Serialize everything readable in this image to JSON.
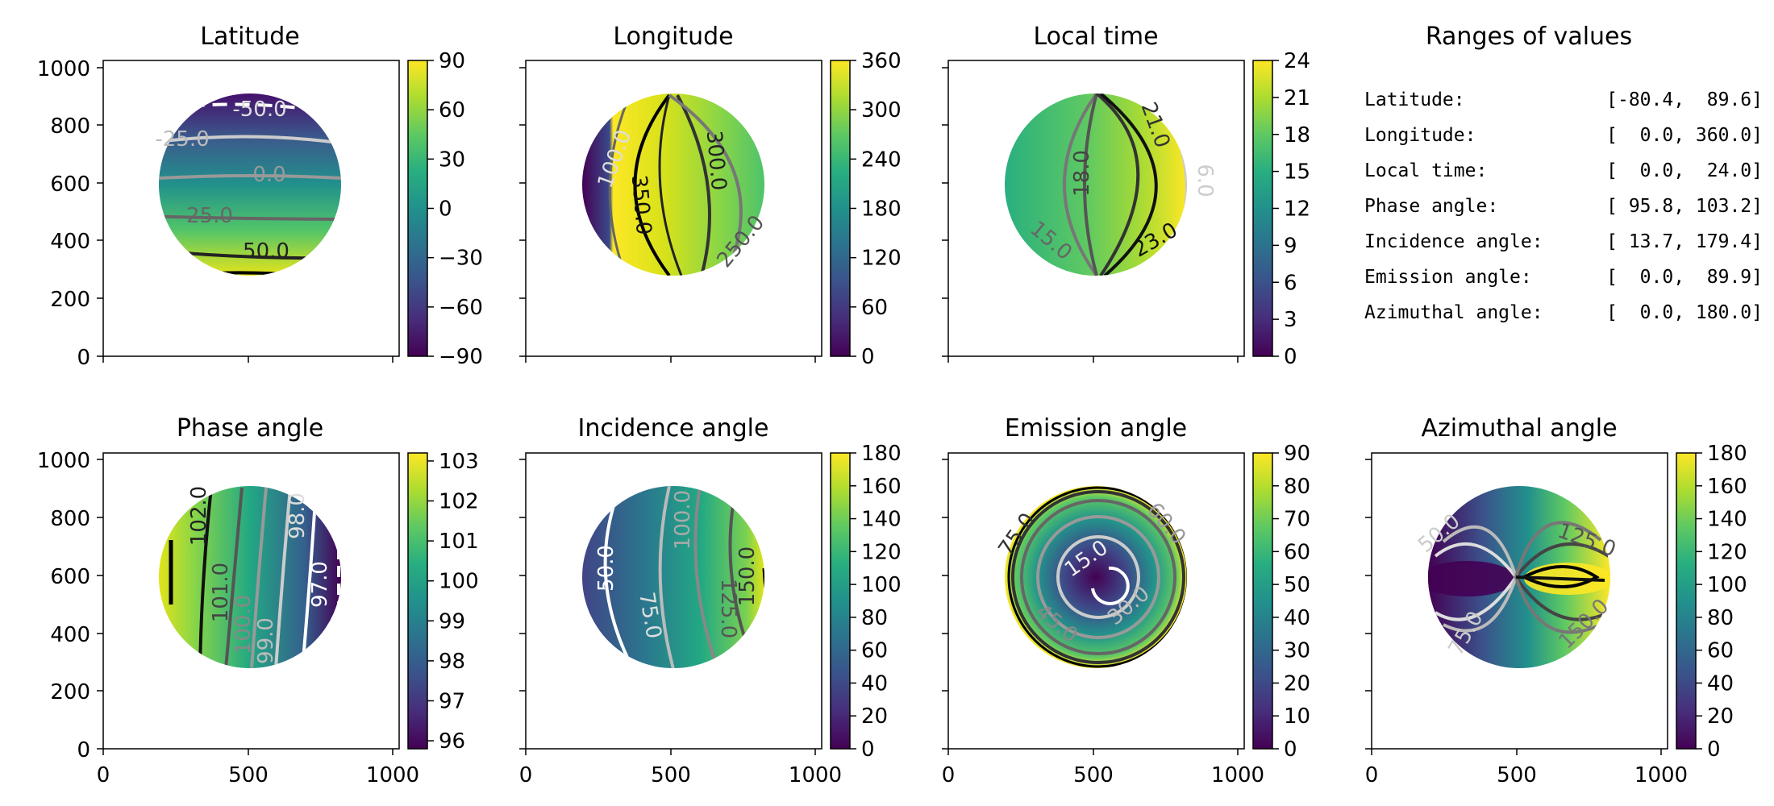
{
  "panels": [
    {
      "title": "Latitude",
      "cbar_ticks": [
        "90",
        "60",
        "30",
        "0",
        "−30",
        "−60",
        "−90"
      ],
      "cbar_range": [
        -90,
        90
      ],
      "contour_labels": [
        "-50.0",
        "-25.0",
        "0.0",
        "25.0",
        "50.0"
      ]
    },
    {
      "title": "Longitude",
      "cbar_ticks": [
        "360",
        "300",
        "240",
        "180",
        "120",
        "60",
        "0"
      ],
      "cbar_range": [
        0,
        360
      ],
      "contour_labels": [
        "100.0",
        "300.0",
        "350.0",
        "250.0"
      ]
    },
    {
      "title": "Local time",
      "cbar_ticks": [
        "24",
        "21",
        "18",
        "15",
        "12",
        "9",
        "6",
        "3",
        "0"
      ],
      "cbar_range": [
        0,
        24
      ],
      "contour_labels": [
        "21.0",
        "18.0",
        "15.0",
        "23.0",
        "6.0"
      ]
    },
    {
      "title": "Phase angle",
      "cbar_ticks": [
        "103",
        "102",
        "101",
        "100",
        "99",
        "98",
        "97",
        "96"
      ],
      "cbar_range": [
        95.8,
        103.2
      ],
      "contour_labels": [
        "102.0",
        "98.0",
        "101.0",
        "97.0",
        "100.0",
        "99.0"
      ]
    },
    {
      "title": "Incidence angle",
      "cbar_ticks": [
        "180",
        "160",
        "140",
        "120",
        "100",
        "80",
        "60",
        "40",
        "20",
        "0"
      ],
      "cbar_range": [
        0,
        180
      ],
      "contour_labels": [
        "100.0",
        "50.0",
        "150.0",
        "125.0",
        "75.0"
      ]
    },
    {
      "title": "Emission angle",
      "cbar_ticks": [
        "90",
        "80",
        "70",
        "60",
        "50",
        "40",
        "30",
        "20",
        "10",
        "0"
      ],
      "cbar_range": [
        0,
        90
      ],
      "contour_labels": [
        "75.0",
        "60.0",
        "15.0",
        "30.0",
        "45.0"
      ]
    },
    {
      "title": "Azimuthal angle",
      "cbar_ticks": [
        "180",
        "160",
        "140",
        "120",
        "100",
        "80",
        "60",
        "40",
        "20",
        "0"
      ],
      "cbar_range": [
        0,
        180
      ],
      "contour_labels": [
        "50.0",
        "125.0",
        "75.0",
        "150.0"
      ]
    }
  ],
  "axes": {
    "y_ticks": [
      "1000",
      "800",
      "600",
      "400",
      "200",
      "0"
    ],
    "x_ticks": [
      "0",
      "500",
      "1000"
    ]
  },
  "ranges": {
    "title": "Ranges of values",
    "rows": [
      {
        "label": "Latitude:",
        "value": "[-80.4,  89.6]"
      },
      {
        "label": "Longitude:",
        "value": "[  0.0, 360.0]"
      },
      {
        "label": "Local time:",
        "value": "[  0.0,  24.0]"
      },
      {
        "label": "Phase angle:",
        "value": "[ 95.8, 103.2]"
      },
      {
        "label": "Incidence angle:",
        "value": "[ 13.7, 179.4]"
      },
      {
        "label": "Emission angle:",
        "value": "[  0.0,  89.9]"
      },
      {
        "label": "Azimuthal angle:",
        "value": "[  0.0, 180.0]"
      }
    ]
  },
  "chart_data": {
    "type": "heatmap",
    "x_range": [
      0,
      1024
    ],
    "y_range": [
      0,
      1024
    ],
    "colormap": "viridis",
    "ranges": {
      "Latitude": [
        -80.4,
        89.6
      ],
      "Longitude": [
        0.0,
        360.0
      ],
      "Local time": [
        0.0,
        24.0
      ],
      "Phase angle": [
        95.8,
        103.2
      ],
      "Incidence angle": [
        13.7,
        179.4
      ],
      "Emission angle": [
        0.0,
        89.9
      ],
      "Azimuthal angle": [
        0.0,
        180.0
      ]
    }
  }
}
